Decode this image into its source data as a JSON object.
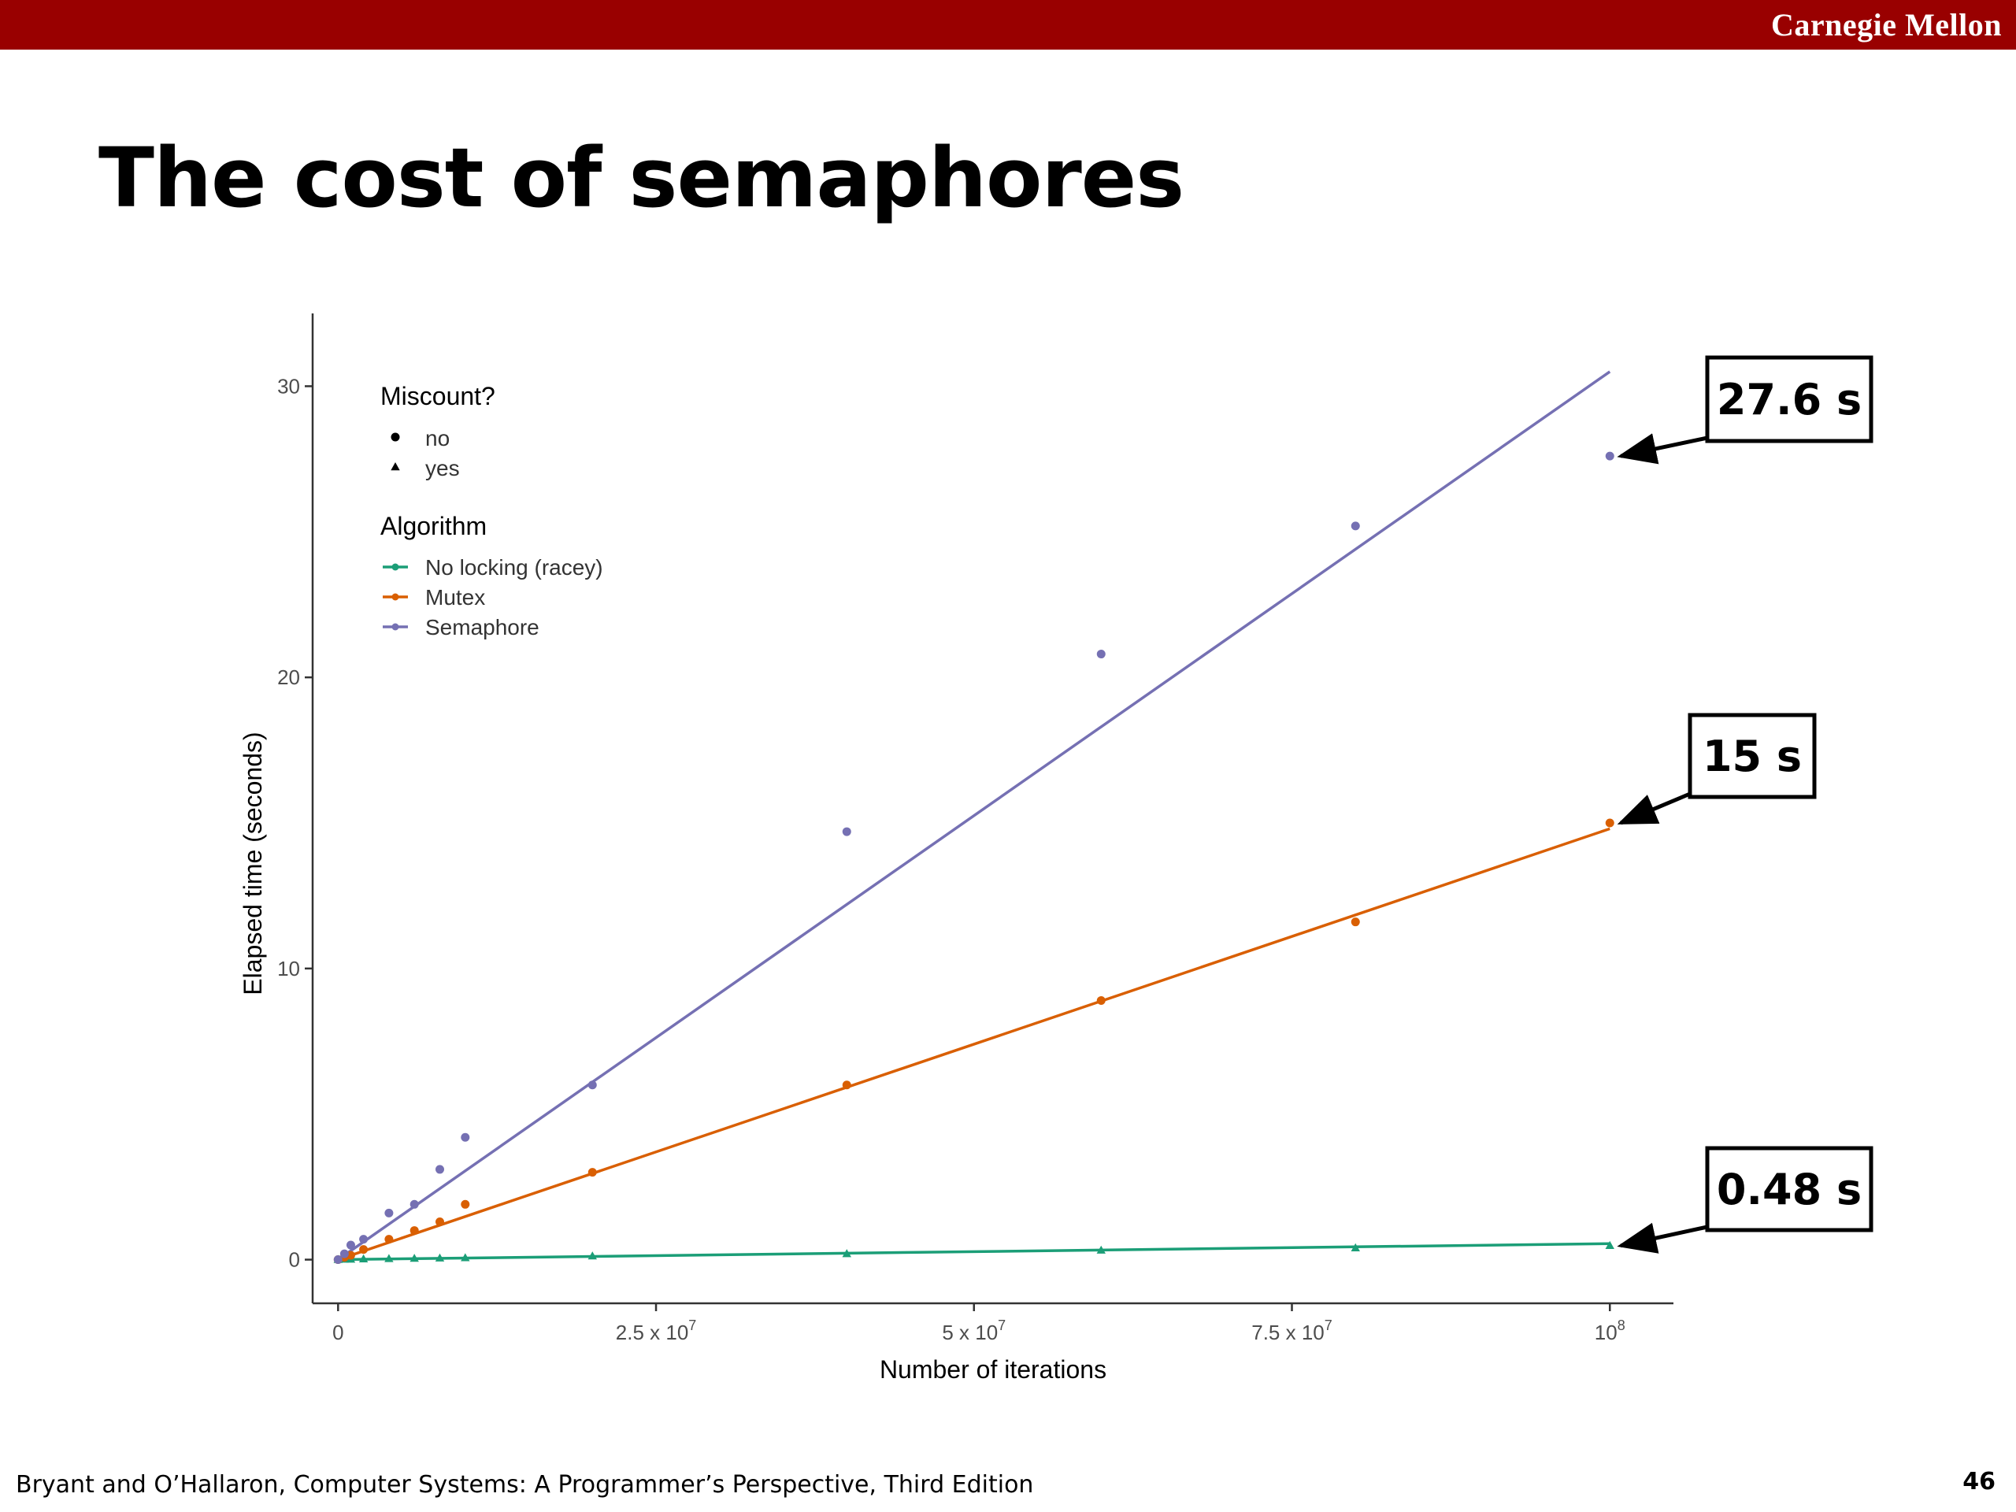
{
  "header": {
    "brand": "Carnegie Mellon",
    "brand_color": "#990000"
  },
  "slide": {
    "title": "The cost of semaphores"
  },
  "footer": {
    "text": "Bryant and O’Hallaron, Computer Systems: A Programmer’s Perspective, Third Edition",
    "page": "46"
  },
  "chart_data": {
    "type": "scatter",
    "xlabel": "Number of iterations",
    "ylabel": "Elapsed time (seconds)",
    "xlim": [
      -2000000,
      105000000
    ],
    "ylim": [
      -1.5,
      32.5
    ],
    "x_ticks": [
      {
        "value": 0,
        "label": "0"
      },
      {
        "value": 25000000,
        "label": "2.5 x 10",
        "sup": "7"
      },
      {
        "value": 50000000,
        "label": "5 x 10",
        "sup": "7"
      },
      {
        "value": 75000000,
        "label": "7.5 x 10",
        "sup": "7"
      },
      {
        "value": 100000000,
        "label": "10",
        "sup": "8"
      }
    ],
    "y_ticks": [
      {
        "value": 0,
        "label": "0"
      },
      {
        "value": 10,
        "label": "10"
      },
      {
        "value": 20,
        "label": "20"
      },
      {
        "value": 30,
        "label": "30"
      }
    ],
    "grid": false,
    "legend": {
      "placement": "top-left",
      "shape_title": "Miscount?",
      "shape_entries": [
        {
          "label": "no",
          "shape": "circle"
        },
        {
          "label": "yes",
          "shape": "triangle"
        }
      ],
      "color_title": "Algorithm"
    },
    "series": [
      {
        "name": "No locking (racey)",
        "color": "#1b9e77",
        "shape": "triangle",
        "fit": [
          [
            0,
            0.0
          ],
          [
            100000000,
            0.55
          ]
        ],
        "points": [
          [
            0,
            0.0
          ],
          [
            500000,
            0.01
          ],
          [
            1000000,
            0.01
          ],
          [
            2000000,
            0.02
          ],
          [
            4000000,
            0.03
          ],
          [
            6000000,
            0.04
          ],
          [
            8000000,
            0.05
          ],
          [
            10000000,
            0.06
          ],
          [
            20000000,
            0.12
          ],
          [
            40000000,
            0.2
          ],
          [
            60000000,
            0.32
          ],
          [
            80000000,
            0.4
          ],
          [
            100000000,
            0.48
          ]
        ]
      },
      {
        "name": "Mutex",
        "color": "#d95f02",
        "shape": "circle",
        "fit": [
          [
            0,
            0.0
          ],
          [
            100000000,
            14.8
          ]
        ],
        "points": [
          [
            0,
            0.0
          ],
          [
            500000,
            0.08
          ],
          [
            1000000,
            0.15
          ],
          [
            2000000,
            0.35
          ],
          [
            4000000,
            0.7
          ],
          [
            6000000,
            1.0
          ],
          [
            8000000,
            1.3
          ],
          [
            10000000,
            1.9
          ],
          [
            20000000,
            3.0
          ],
          [
            40000000,
            6.0
          ],
          [
            60000000,
            8.9
          ],
          [
            80000000,
            11.6
          ],
          [
            100000000,
            15.0
          ]
        ]
      },
      {
        "name": "Semaphore",
        "color": "#7570b3",
        "shape": "circle",
        "fit": [
          [
            0,
            0.0
          ],
          [
            100000000,
            30.5
          ]
        ],
        "points": [
          [
            0,
            0.0
          ],
          [
            500000,
            0.2
          ],
          [
            1000000,
            0.5
          ],
          [
            2000000,
            0.7
          ],
          [
            4000000,
            1.6
          ],
          [
            6000000,
            1.9
          ],
          [
            8000000,
            3.1
          ],
          [
            10000000,
            4.2
          ],
          [
            20000000,
            6.0
          ],
          [
            40000000,
            14.7
          ],
          [
            60000000,
            20.8
          ],
          [
            80000000,
            25.2
          ],
          [
            100000000,
            27.6
          ]
        ]
      }
    ],
    "annotations": [
      {
        "text": "27.6 s",
        "series": "Semaphore",
        "x": 100000000,
        "y": 27.6
      },
      {
        "text": "15 s",
        "series": "Mutex",
        "x": 100000000,
        "y": 15.0
      },
      {
        "text": "0.48 s",
        "series": "No locking (racey)",
        "x": 100000000,
        "y": 0.48
      }
    ]
  }
}
